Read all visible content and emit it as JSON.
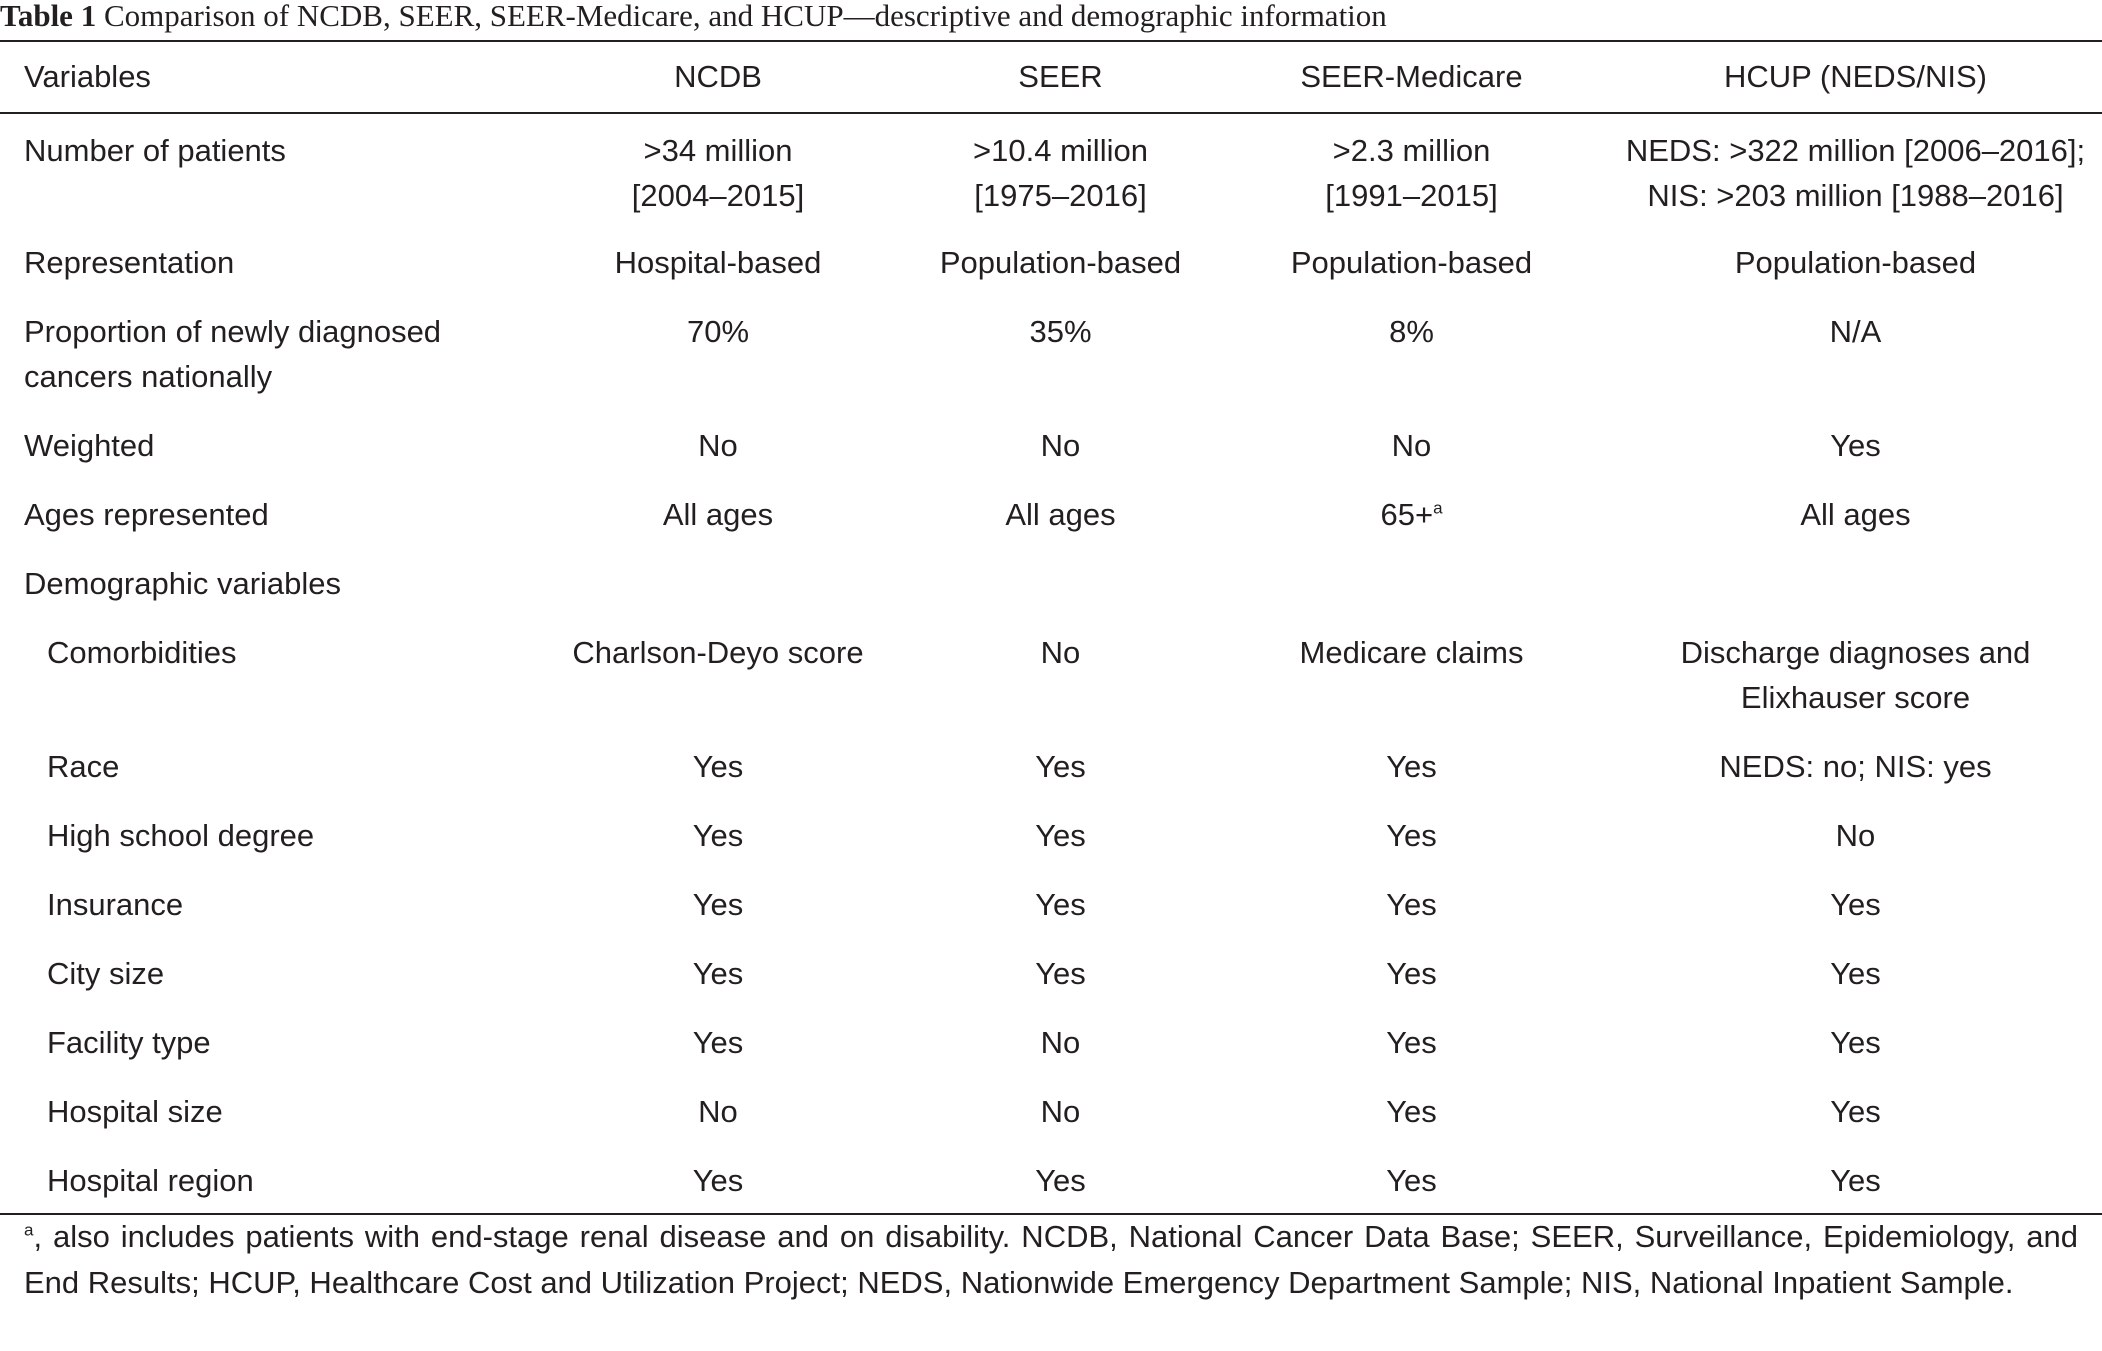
{
  "caption": {
    "label": "Table 1",
    "text": "Comparison of NCDB, SEER, SEER-Medicare, and HCUP—descriptive and demographic information"
  },
  "columns": [
    "Variables",
    "NCDB",
    "SEER",
    "SEER-Medicare",
    "HCUP (NEDS/NIS)"
  ],
  "rows": [
    {
      "variable": "Number of patients",
      "ncdb": ">34 million\n[2004–2015]",
      "seer": ">10.4 million\n[1975–2016]",
      "seer_medicare": ">2.3 million\n[1991–2015]",
      "hcup": "NEDS: >322 million [2006–2016];\nNIS: >203 million [1988–2016]"
    },
    {
      "variable": "Representation",
      "ncdb": "Hospital-based",
      "seer": "Population-based",
      "seer_medicare": "Population-based",
      "hcup": "Population-based"
    },
    {
      "variable": "Proportion of newly diagnosed\ncancers nationally",
      "ncdb": "70%",
      "seer": "35%",
      "seer_medicare": "8%",
      "hcup": "N/A"
    },
    {
      "variable": "Weighted",
      "ncdb": "No",
      "seer": "No",
      "seer_medicare": "No",
      "hcup": "Yes"
    },
    {
      "variable": "Ages represented",
      "ncdb": "All ages",
      "seer": "All ages",
      "seer_medicare": "65+",
      "seer_medicare_sup": "a",
      "hcup": "All ages"
    },
    {
      "variable": "Demographic variables",
      "ncdb": "",
      "seer": "",
      "seer_medicare": "",
      "hcup": ""
    },
    {
      "variable": "Comorbidities",
      "ncdb": "Charlson-Deyo score",
      "seer": "No",
      "seer_medicare": "Medicare claims",
      "hcup": "Discharge diagnoses and\nElixhauser score"
    },
    {
      "variable": "Race",
      "ncdb": "Yes",
      "seer": "Yes",
      "seer_medicare": "Yes",
      "hcup": "NEDS: no; NIS: yes"
    },
    {
      "variable": "High school degree",
      "ncdb": "Yes",
      "seer": "Yes",
      "seer_medicare": "Yes",
      "hcup": "No"
    },
    {
      "variable": "Insurance",
      "ncdb": "Yes",
      "seer": "Yes",
      "seer_medicare": "Yes",
      "hcup": "Yes"
    },
    {
      "variable": "City size",
      "ncdb": "Yes",
      "seer": "Yes",
      "seer_medicare": "Yes",
      "hcup": "Yes"
    },
    {
      "variable": "Facility type",
      "ncdb": "Yes",
      "seer": "No",
      "seer_medicare": "Yes",
      "hcup": "Yes"
    },
    {
      "variable": "Hospital size",
      "ncdb": "No",
      "seer": "No",
      "seer_medicare": "Yes",
      "hcup": "Yes"
    },
    {
      "variable": "Hospital region",
      "ncdb": "Yes",
      "seer": "Yes",
      "seer_medicare": "Yes",
      "hcup": "Yes"
    }
  ],
  "footnote": {
    "mark": "a",
    "text": ", also includes patients with end-stage renal disease and on disability. NCDB, National Cancer Data Base; SEER, Surveillance, Epidemiology, and End Results; HCUP, Healthcare Cost and Utilization Project; NEDS, Nationwide Emergency Department Sample; NIS, National Inpatient Sample."
  }
}
